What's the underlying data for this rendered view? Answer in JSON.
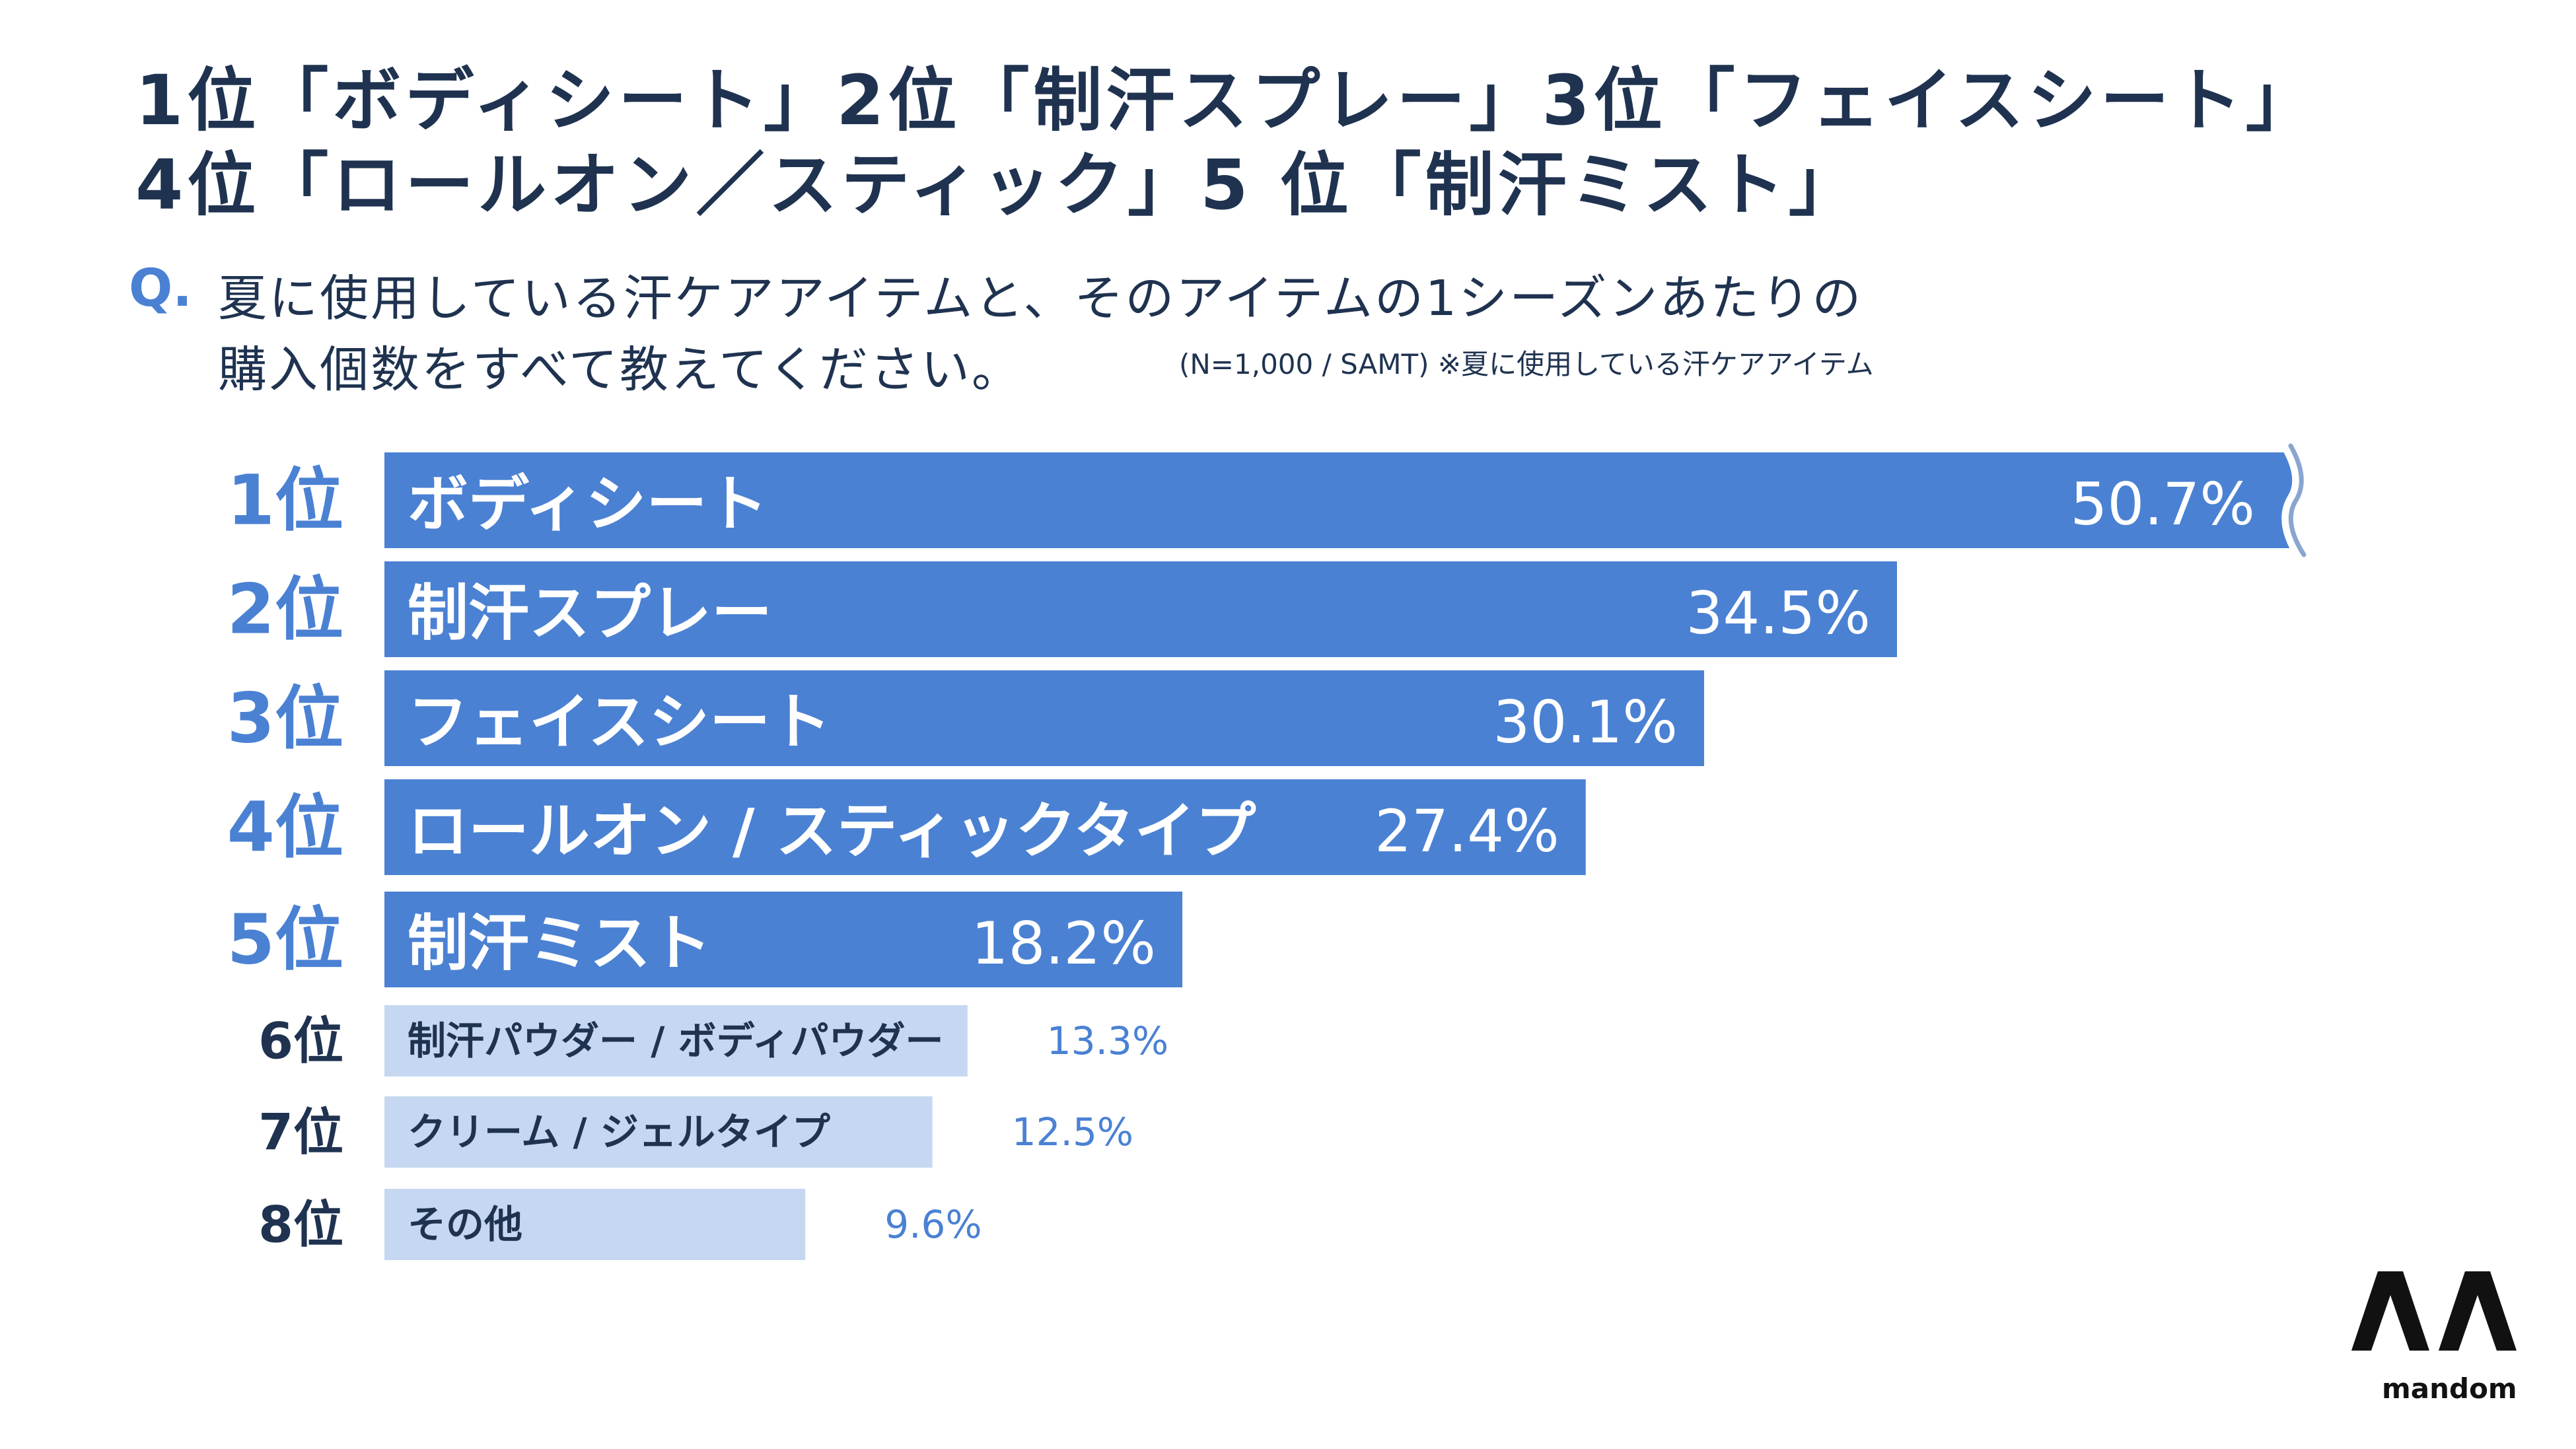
{
  "headline": {
    "line1": "1位「ボディシート」2位「制汗スプレー」3位「フェイスシート」",
    "line2": "4位「ロールオン／スティック」5 位「制汗ミスト」"
  },
  "question": {
    "mark": "Q.",
    "line1": "夏に使用している汗ケアアイテムと、そのアイテムの1シーズンあたりの",
    "line2": "購入個数をすべて教えてください。",
    "note": "(N=1,000 / SAMT) ※夏に使用している汗ケアアイテム"
  },
  "chart_data": {
    "type": "bar",
    "orientation": "horizontal",
    "title": "",
    "unit": "%",
    "ranks": [
      "1位",
      "2位",
      "3位",
      "4位",
      "5位",
      "6位",
      "7位",
      "8位"
    ],
    "categories": [
      "ボディシート",
      "制汗スプレー",
      "フェイスシート",
      "ロールオン / スティックタイプ",
      "制汗ミスト",
      "制汗パウダー / ボディパウダー",
      "クリーム / ジェルタイプ",
      "その他"
    ],
    "values": [
      50.7,
      34.5,
      30.1,
      27.4,
      18.2,
      13.3,
      12.5,
      9.6
    ],
    "axis_break_on_first_bar": true
  },
  "colors": {
    "bar_top5": "#4a81d3",
    "bar_rest": "#c6d8f1",
    "label_rest": "#4a81d3",
    "text_dark": "#1f3350"
  },
  "logo": {
    "text": "mandom"
  }
}
